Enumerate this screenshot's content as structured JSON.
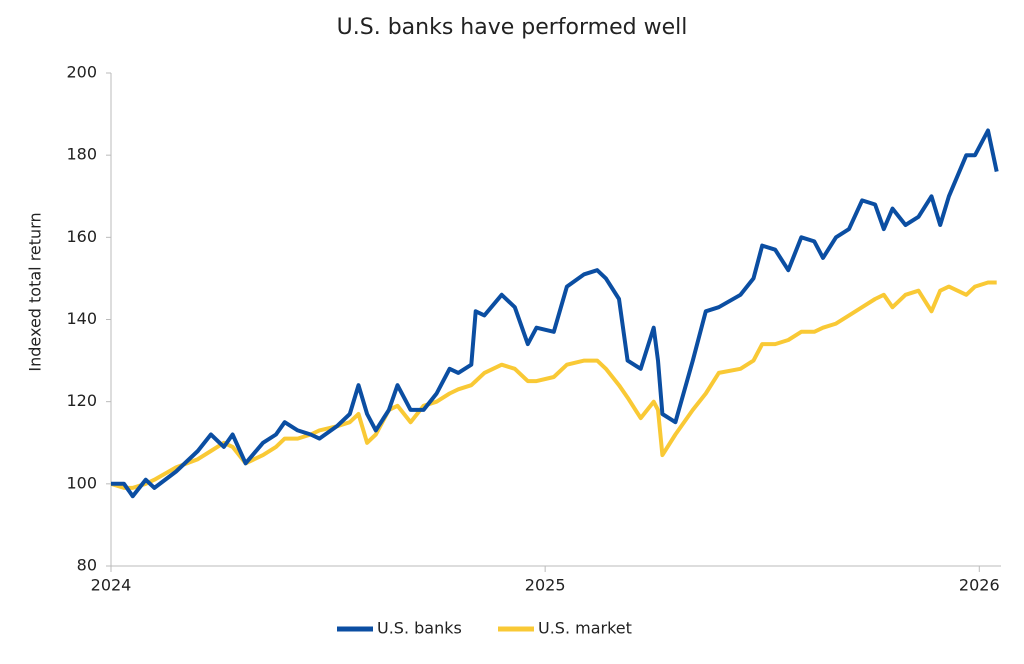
{
  "chart_data": {
    "type": "line",
    "title": "U.S. banks have performed well",
    "y_label": "Indexed total return",
    "x": [
      2024.0,
      2024.03,
      2024.05,
      2024.08,
      2024.1,
      2024.15,
      2024.2,
      2024.23,
      2024.26,
      2024.28,
      2024.31,
      2024.35,
      2024.38,
      2024.4,
      2024.43,
      2024.46,
      2024.48,
      2024.52,
      2024.55,
      2024.57,
      2024.59,
      2024.61,
      2024.64,
      2024.66,
      2024.69,
      2024.72,
      2024.75,
      2024.78,
      2024.8,
      2024.83,
      2024.84,
      2024.86,
      2024.9,
      2024.93,
      2024.96,
      2024.98,
      2025.02,
      2025.05,
      2025.09,
      2025.12,
      2025.14,
      2025.17,
      2025.19,
      2025.22,
      2025.25,
      2025.26,
      2025.27,
      2025.3,
      2025.34,
      2025.37,
      2025.4,
      2025.45,
      2025.48,
      2025.5,
      2025.53,
      2025.56,
      2025.59,
      2025.62,
      2025.64,
      2025.67,
      2025.7,
      2025.73,
      2025.76,
      2025.78,
      2025.8,
      2025.83,
      2025.86,
      2025.89,
      2025.91,
      2025.93,
      2025.97,
      2025.99,
      2026.02,
      2026.04
    ],
    "series": [
      {
        "name": "U.S. banks",
        "color": "#0b4ea2",
        "values": [
          100,
          100,
          97,
          101,
          99,
          103,
          108,
          112,
          109,
          112,
          105,
          110,
          112,
          115,
          113,
          112,
          111,
          114,
          117,
          124,
          117,
          113,
          118,
          124,
          118,
          118,
          122,
          128,
          127,
          129,
          142,
          141,
          146,
          143,
          134,
          138,
          137,
          148,
          151,
          152,
          150,
          145,
          130,
          128,
          138,
          130,
          117,
          115,
          130,
          142,
          143,
          146,
          150,
          158,
          157,
          152,
          160,
          159,
          155,
          160,
          162,
          169,
          168,
          162,
          167,
          163,
          165,
          170,
          163,
          170,
          180,
          180,
          186,
          176
        ]
      },
      {
        "name": "U.S. market",
        "color": "#f9c935",
        "values": [
          100,
          99,
          99,
          100,
          101,
          104,
          106,
          108,
          110,
          109,
          105,
          107,
          109,
          111,
          111,
          112,
          113,
          114,
          115,
          117,
          110,
          112,
          118,
          119,
          115,
          119,
          120,
          122,
          123,
          124,
          125,
          127,
          129,
          128,
          125,
          125,
          126,
          129,
          130,
          130,
          128,
          124,
          121,
          116,
          120,
          118,
          107,
          112,
          118,
          122,
          127,
          128,
          130,
          134,
          134,
          135,
          137,
          137,
          138,
          139,
          141,
          143,
          145,
          146,
          143,
          146,
          147,
          142,
          147,
          148,
          146,
          148,
          149,
          149
        ]
      }
    ],
    "xlim": [
      2024,
      2026.05
    ],
    "xticks": [
      2024,
      2025,
      2026
    ],
    "ylim": [
      80,
      200
    ],
    "yticks": [
      80,
      100,
      120,
      140,
      160,
      180,
      200
    ],
    "grid": false,
    "legend": "bottom"
  }
}
